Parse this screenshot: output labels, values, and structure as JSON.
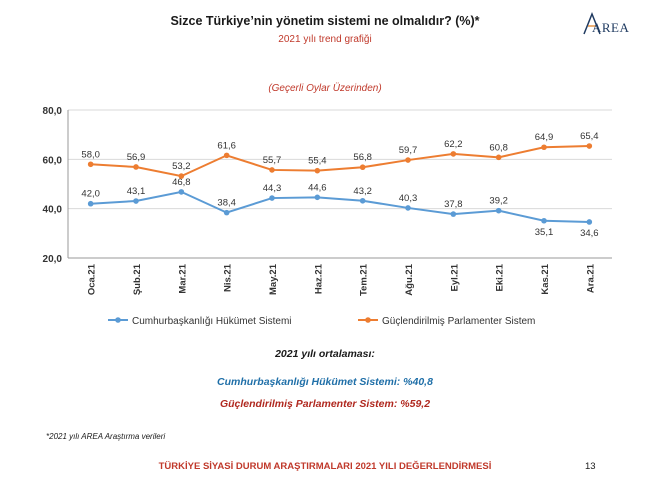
{
  "title": "Sizce Türkiye’nin yönetim sistemi ne olmalıdır? (%)*",
  "subtitle": "2021 yılı trend grafiği",
  "note": "(Geçerli Oylar Üzerinden)",
  "logo": "AREA",
  "chart_data": {
    "type": "line",
    "categories": [
      "Oca.21",
      "Şub.21",
      "Mar.21",
      "Nis.21",
      "May.21",
      "Haz.21",
      "Tem.21",
      "Ağu.21",
      "Eyl.21",
      "Eki.21",
      "Kas.21",
      "Ara.21"
    ],
    "ylim": [
      20,
      80
    ],
    "yticks": [
      "20,0",
      "40,0",
      "60,0",
      "80,0"
    ],
    "grid": true,
    "legend_position": "bottom",
    "series": [
      {
        "name": "Cumhurbaşkanlığı Hükümet Sistemi",
        "color": "#5b9bd5",
        "values": [
          42.0,
          43.1,
          46.8,
          38.4,
          44.3,
          44.6,
          43.2,
          40.3,
          37.8,
          39.2,
          35.1,
          34.6
        ],
        "labels": [
          "42,0",
          "43,1",
          "46,8",
          "38,4",
          "44,3",
          "44,6",
          "43,2",
          "40,3",
          "37,8",
          "39,2",
          "35,1",
          "34,6"
        ]
      },
      {
        "name": "Güçlendirilmiş Parlamenter Sistem",
        "color": "#ed7d31",
        "values": [
          58.0,
          56.9,
          53.2,
          61.6,
          55.7,
          55.4,
          56.8,
          59.7,
          62.2,
          60.8,
          64.9,
          65.4
        ],
        "labels": [
          "58,0",
          "56,9",
          "53,2",
          "61,6",
          "55,7",
          "55,4",
          "56,8",
          "59,7",
          "62,2",
          "60,8",
          "64,9",
          "65,4"
        ]
      }
    ]
  },
  "summary": {
    "heading": "2021 yılı ortalaması:",
    "blue": "Cumhurbaşkanlığı Hükümet Sistemi: %40,8",
    "red": "Güçlendirilmiş Parlamenter Sistem: %59,2"
  },
  "footnote": "*2021 yılı AREA Araştırma verileri",
  "footer": "TÜRKİYE SİYASİ DURUM ARAŞTIRMALARI 2021 YILI DEĞERLENDİRMESİ",
  "page_number": "13"
}
